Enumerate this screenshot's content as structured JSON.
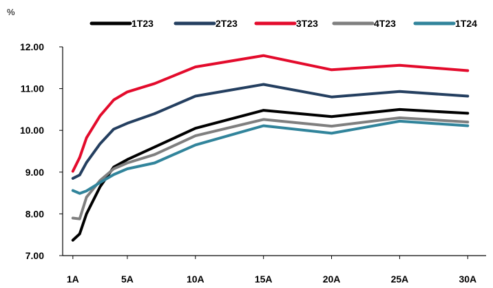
{
  "chart_data": {
    "type": "line",
    "unit_label": "%",
    "categories": [
      "1A",
      "",
      "",
      "",
      "5A",
      "",
      "",
      "",
      "",
      "10A",
      "",
      "",
      "",
      "",
      "15A",
      "",
      "",
      "",
      "",
      "20A",
      "",
      "",
      "",
      "",
      "25A",
      "",
      "",
      "",
      "",
      "30A"
    ],
    "x": [
      1,
      1.5,
      2,
      3,
      4,
      5,
      7,
      10,
      15,
      20,
      25,
      30
    ],
    "x_tick_labels": [
      "1A",
      "5A",
      "10A",
      "15A",
      "20A",
      "25A",
      "30A"
    ],
    "x_tick_values": [
      1,
      5,
      10,
      15,
      20,
      25,
      30
    ],
    "ylim": [
      7.0,
      12.0
    ],
    "y_tick_values": [
      7.0,
      8.0,
      9.0,
      10.0,
      11.0,
      12.0
    ],
    "y_tick_labels": [
      "7.00",
      "8.00",
      "9.00",
      "10.00",
      "11.00",
      "12.00"
    ],
    "legend_position": "top",
    "series": [
      {
        "name": "1T23",
        "color": "#000000",
        "values": [
          7.37,
          7.52,
          8.0,
          8.65,
          9.12,
          9.3,
          9.6,
          10.05,
          10.48,
          10.33,
          10.5,
          10.41
        ]
      },
      {
        "name": "2T23",
        "color": "#243F60",
        "values": [
          8.85,
          8.93,
          9.23,
          9.68,
          10.03,
          10.17,
          10.4,
          10.82,
          11.1,
          10.8,
          10.93,
          10.82
        ]
      },
      {
        "name": "3T23",
        "color": "#E30B2C",
        "values": [
          9.02,
          9.35,
          9.82,
          10.35,
          10.73,
          10.92,
          11.12,
          11.52,
          11.79,
          11.45,
          11.56,
          11.43
        ]
      },
      {
        "name": "4T23",
        "color": "#7F7F7F",
        "values": [
          7.9,
          7.88,
          8.4,
          8.8,
          9.08,
          9.22,
          9.42,
          9.87,
          10.26,
          10.1,
          10.3,
          10.2
        ]
      },
      {
        "name": "1T24",
        "color": "#31849B",
        "values": [
          8.56,
          8.49,
          8.55,
          8.75,
          8.94,
          9.08,
          9.22,
          9.65,
          10.11,
          9.93,
          10.22,
          10.11
        ]
      }
    ]
  }
}
